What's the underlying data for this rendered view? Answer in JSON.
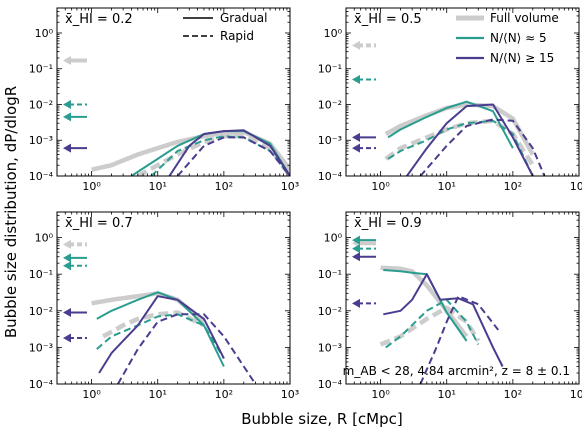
{
  "figure": {
    "xlabel": "Bubble size, R [cMpc]",
    "ylabel": "Bubble size distribution, dP/dlogR",
    "legend_style": [
      {
        "label": "Gradual",
        "dash": "solid"
      },
      {
        "label": "Rapid",
        "dash": "dashed"
      }
    ],
    "legend_series": [
      {
        "label": "Full volume",
        "color": "#cccccc"
      },
      {
        "label": "N/⟨N⟩ ≈ 5",
        "color": "#2a9d8f"
      },
      {
        "label": "N/⟨N⟩ ≥ 15",
        "color": "#4a3d8f"
      }
    ],
    "annotation": "m_AB < 28, 4.84 arcmin², z = 8 ± 0.1"
  },
  "chart_data": [
    {
      "type": "line",
      "title": "x̄_HI = 0.2",
      "xscale": "log",
      "yscale": "log",
      "xlim": [
        0.3,
        1000
      ],
      "ylim": [
        0.0001,
        5
      ],
      "xticks": [
        "10⁰",
        "10¹",
        "10²",
        "10³"
      ],
      "yticks": [
        "10⁻⁴",
        "10⁻³",
        "10⁻²",
        "10⁻¹",
        "10⁰"
      ],
      "series": [
        {
          "color": "#cccccc",
          "dash": "solid",
          "x": [
            1,
            2,
            5,
            10,
            20,
            50,
            100,
            200,
            500,
            1000
          ],
          "y": [
            0.00015,
            0.0002,
            0.0004,
            0.0006,
            0.0009,
            0.0013,
            0.0016,
            0.0017,
            0.0008,
            0.00015
          ]
        },
        {
          "color": "#cccccc",
          "dash": "dashed",
          "x": [
            5,
            10,
            20,
            50,
            100,
            200,
            500,
            1000
          ],
          "y": [
            0.0001,
            0.0002,
            0.0004,
            0.0009,
            0.0013,
            0.0013,
            0.0006,
            0.0001
          ]
        },
        {
          "color": "#2a9d8f",
          "dash": "solid",
          "x": [
            4,
            10,
            20,
            50,
            100,
            200,
            500,
            1000
          ],
          "y": [
            0.0001,
            0.0003,
            0.0007,
            0.0015,
            0.0018,
            0.0018,
            0.0008,
            0.0001
          ]
        },
        {
          "color": "#2a9d8f",
          "dash": "dashed",
          "x": [
            8,
            20,
            50,
            100,
            200,
            500,
            1000
          ],
          "y": [
            0.0001,
            0.0005,
            0.001,
            0.0013,
            0.0012,
            0.0005,
            0.0001
          ]
        },
        {
          "color": "#4a3d8f",
          "dash": "solid",
          "x": [
            15,
            30,
            50,
            100,
            200,
            500,
            1000
          ],
          "y": [
            0.0001,
            0.0007,
            0.0015,
            0.0018,
            0.0019,
            0.0007,
            0.0001
          ]
        },
        {
          "color": "#4a3d8f",
          "dash": "dashed",
          "x": [
            20,
            50,
            100,
            200,
            500,
            1000
          ],
          "y": [
            0.0001,
            0.0007,
            0.0012,
            0.0012,
            0.0005,
            0.0001
          ]
        }
      ],
      "arrows": [
        {
          "color": "#cccccc",
          "dash": "solid",
          "y": 0.17
        },
        {
          "color": "#2a9d8f",
          "dash": "dashed",
          "y": 0.01
        },
        {
          "color": "#2a9d8f",
          "dash": "solid",
          "y": 0.0045
        },
        {
          "color": "#4a3d8f",
          "dash": "solid",
          "y": 0.0006
        }
      ]
    },
    {
      "type": "line",
      "title": "x̄_HI = 0.5",
      "xscale": "log",
      "yscale": "log",
      "xlim": [
        0.3,
        1000
      ],
      "ylim": [
        0.0001,
        5
      ],
      "xticks": [
        "10⁰",
        "10¹",
        "10²",
        "10³"
      ],
      "yticks": [
        "10⁻⁴",
        "10⁻³",
        "10⁻²",
        "10⁻¹",
        "10⁰"
      ],
      "series": [
        {
          "color": "#cccccc",
          "dash": "solid",
          "x": [
            1.2,
            2,
            5,
            10,
            20,
            50,
            100,
            200
          ],
          "y": [
            0.0015,
            0.0025,
            0.005,
            0.008,
            0.01,
            0.009,
            0.004,
            0.0004
          ]
        },
        {
          "color": "#cccccc",
          "dash": "dashed",
          "x": [
            1.2,
            2,
            5,
            10,
            20,
            50,
            100,
            200
          ],
          "y": [
            0.0003,
            0.0006,
            0.0012,
            0.002,
            0.003,
            0.0035,
            0.0015,
            0.0002
          ]
        },
        {
          "color": "#2a9d8f",
          "dash": "solid",
          "x": [
            1.3,
            2,
            5,
            10,
            20,
            50,
            100
          ],
          "y": [
            0.0012,
            0.002,
            0.0045,
            0.008,
            0.012,
            0.0065,
            0.0006
          ]
        },
        {
          "color": "#2a9d8f",
          "dash": "dashed",
          "x": [
            1.3,
            2,
            5,
            10,
            20,
            50,
            100,
            200
          ],
          "y": [
            0.0003,
            0.0005,
            0.001,
            0.002,
            0.003,
            0.0035,
            0.0015,
            0.0001
          ]
        },
        {
          "color": "#4a3d8f",
          "dash": "solid",
          "x": [
            2.5,
            5,
            10,
            20,
            50,
            100,
            200
          ],
          "y": [
            0.0001,
            0.0006,
            0.003,
            0.009,
            0.01,
            0.0012,
            0.0001
          ]
        },
        {
          "color": "#4a3d8f",
          "dash": "dashed",
          "x": [
            4,
            10,
            20,
            50,
            100,
            200,
            300
          ],
          "y": [
            0.0001,
            0.0007,
            0.0025,
            0.0038,
            0.0035,
            0.0006,
            0.0001
          ]
        }
      ],
      "arrows": [
        {
          "color": "#cccccc",
          "dash": "dashed",
          "y": 0.45
        },
        {
          "color": "#2a9d8f",
          "dash": "dashed",
          "y": 0.05
        },
        {
          "color": "#4a3d8f",
          "dash": "solid",
          "y": 0.0012
        },
        {
          "color": "#4a3d8f",
          "dash": "dashed",
          "y": 0.0006
        }
      ]
    },
    {
      "type": "line",
      "title": "x̄_HI = 0.7",
      "xscale": "log",
      "yscale": "log",
      "xlim": [
        0.3,
        1000
      ],
      "ylim": [
        0.0001,
        5
      ],
      "xticks": [
        "10⁰",
        "10¹",
        "10²",
        "10³"
      ],
      "yticks": [
        "10⁻⁴",
        "10⁻³",
        "10⁻²",
        "10⁻¹",
        "10⁰"
      ],
      "series": [
        {
          "color": "#cccccc",
          "dash": "solid",
          "x": [
            1,
            2,
            5,
            10,
            20,
            50
          ],
          "y": [
            0.016,
            0.02,
            0.025,
            0.03,
            0.02,
            0.005
          ]
        },
        {
          "color": "#cccccc",
          "dash": "dashed",
          "x": [
            1.5,
            3,
            5,
            10,
            20,
            50
          ],
          "y": [
            0.002,
            0.004,
            0.006,
            0.008,
            0.009,
            0.004
          ]
        },
        {
          "color": "#2a9d8f",
          "dash": "solid",
          "x": [
            1.2,
            2,
            5,
            10,
            20,
            50,
            100
          ],
          "y": [
            0.006,
            0.01,
            0.02,
            0.032,
            0.02,
            0.004,
            0.0003
          ]
        },
        {
          "color": "#2a9d8f",
          "dash": "dashed",
          "x": [
            1.2,
            2,
            5,
            10,
            20,
            50,
            100
          ],
          "y": [
            0.0009,
            0.002,
            0.004,
            0.007,
            0.008,
            0.004,
            0.0005
          ]
        },
        {
          "color": "#4a3d8f",
          "dash": "solid",
          "x": [
            1.3,
            2,
            5,
            10,
            20,
            50,
            100
          ],
          "y": [
            0.0002,
            0.0007,
            0.004,
            0.025,
            0.02,
            0.006,
            0.0005
          ]
        },
        {
          "color": "#4a3d8f",
          "dash": "dashed",
          "x": [
            2.5,
            5,
            10,
            20,
            50,
            100,
            300
          ],
          "y": [
            0.0001,
            0.0009,
            0.005,
            0.008,
            0.008,
            0.002,
            0.0001
          ]
        }
      ],
      "arrows": [
        {
          "color": "#cccccc",
          "dash": "dashed",
          "y": 0.65
        },
        {
          "color": "#2a9d8f",
          "dash": "solid",
          "y": 0.28
        },
        {
          "color": "#2a9d8f",
          "dash": "dashed",
          "y": 0.17
        },
        {
          "color": "#4a3d8f",
          "dash": "solid",
          "y": 0.009
        },
        {
          "color": "#4a3d8f",
          "dash": "dashed",
          "y": 0.0018
        }
      ]
    },
    {
      "type": "line",
      "title": "x̄_HI = 0.9",
      "xscale": "log",
      "yscale": "log",
      "xlim": [
        0.3,
        1000
      ],
      "ylim": [
        0.0001,
        5
      ],
      "xticks": [
        "10⁰",
        "10¹",
        "10²",
        "10³"
      ],
      "yticks": [
        "10⁻⁴",
        "10⁻³",
        "10⁻²",
        "10⁻¹",
        "10⁰"
      ],
      "series": [
        {
          "color": "#cccccc",
          "dash": "solid",
          "x": [
            1,
            2,
            3,
            5,
            10,
            20
          ],
          "y": [
            0.15,
            0.14,
            0.12,
            0.05,
            0.01,
            0.002
          ]
        },
        {
          "color": "#cccccc",
          "dash": "dashed",
          "x": [
            1,
            2,
            5,
            10,
            20,
            30
          ],
          "y": [
            0.0012,
            0.002,
            0.006,
            0.012,
            0.005,
            0.0015
          ]
        },
        {
          "color": "#2a9d8f",
          "dash": "solid",
          "x": [
            1.1,
            2,
            3,
            5,
            10,
            20
          ],
          "y": [
            0.13,
            0.12,
            0.11,
            0.1,
            0.009,
            0.0015
          ]
        },
        {
          "color": "#2a9d8f",
          "dash": "dashed",
          "x": [
            1.2,
            2,
            5,
            10,
            20,
            30
          ],
          "y": [
            0.001,
            0.002,
            0.01,
            0.02,
            0.005,
            0.0012
          ]
        },
        {
          "color": "#4a3d8f",
          "dash": "solid",
          "x": [
            1.1,
            2,
            3,
            5,
            8,
            15,
            25,
            50,
            70
          ],
          "y": [
            0.008,
            0.01,
            0.02,
            0.1,
            0.02,
            0.022,
            0.015,
            0.001,
            0.0003
          ]
        },
        {
          "color": "#4a3d8f",
          "dash": "dashed",
          "x": [
            4,
            7,
            10,
            15,
            30,
            60
          ],
          "y": [
            0.0001,
            0.001,
            0.005,
            0.025,
            0.015,
            0.003
          ]
        }
      ],
      "arrows": [
        {
          "color": "#cccccc",
          "dash": "solid",
          "y": 0.7
        },
        {
          "color": "#2a9d8f",
          "dash": "solid",
          "y": 0.85
        },
        {
          "color": "#2a9d8f",
          "dash": "dashed",
          "y": 0.5
        },
        {
          "color": "#4a3d8f",
          "dash": "solid",
          "y": 0.3
        },
        {
          "color": "#4a3d8f",
          "dash": "dashed",
          "y": 0.016
        }
      ]
    }
  ]
}
